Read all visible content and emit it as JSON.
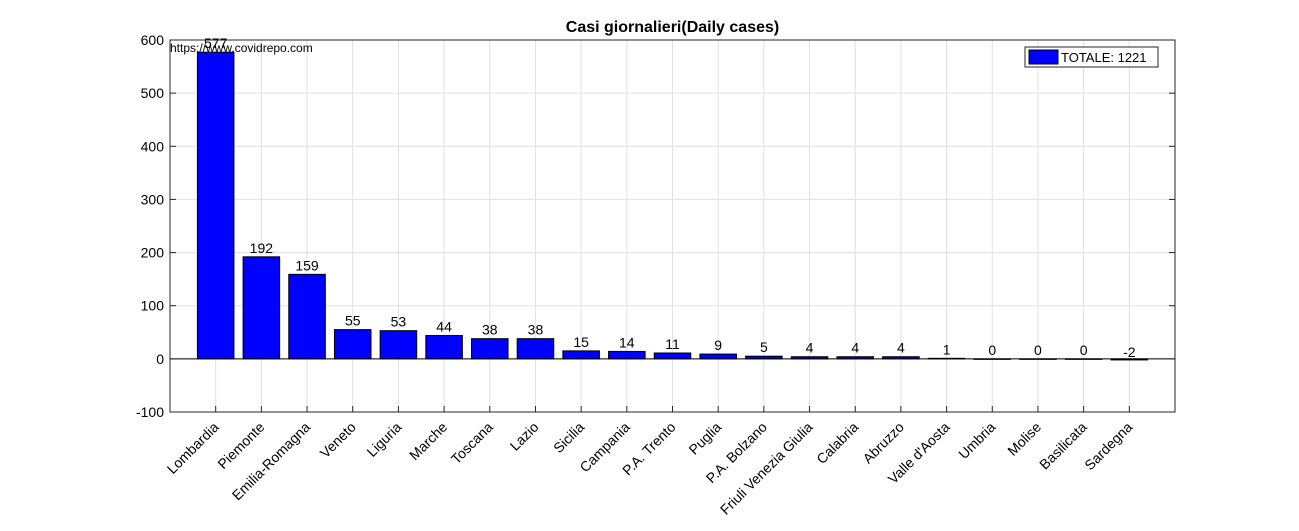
{
  "chart_data": {
    "type": "bar",
    "title": "Casi giornalieri(Daily cases)",
    "annotation": "https://www.covidrepo.com",
    "categories": [
      "Lombardia",
      "Piemonte",
      "Emilia-Romagna",
      "Veneto",
      "Liguria",
      "Marche",
      "Toscana",
      "Lazio",
      "Sicilia",
      "Campania",
      "P.A. Trento",
      "Puglia",
      "P.A. Bolzano",
      "Friuli Venezia Giulia",
      "Calabria",
      "Abruzzo",
      "Valle d'Aosta",
      "Umbria",
      "Molise",
      "Basilicata",
      "Sardegna"
    ],
    "values": [
      577,
      192,
      159,
      55,
      53,
      44,
      38,
      38,
      15,
      14,
      11,
      9,
      5,
      4,
      4,
      4,
      1,
      0,
      0,
      0,
      -2
    ],
    "legend": {
      "label": "TOTALE: 1221",
      "position": "top-right"
    },
    "ylim": [
      -100,
      600
    ],
    "yticks": [
      "-100",
      "0",
      "100",
      "200",
      "300",
      "400",
      "500",
      "600"
    ],
    "xlabel": "",
    "ylabel": "",
    "grid": true,
    "bar_color": "#0000ff"
  }
}
